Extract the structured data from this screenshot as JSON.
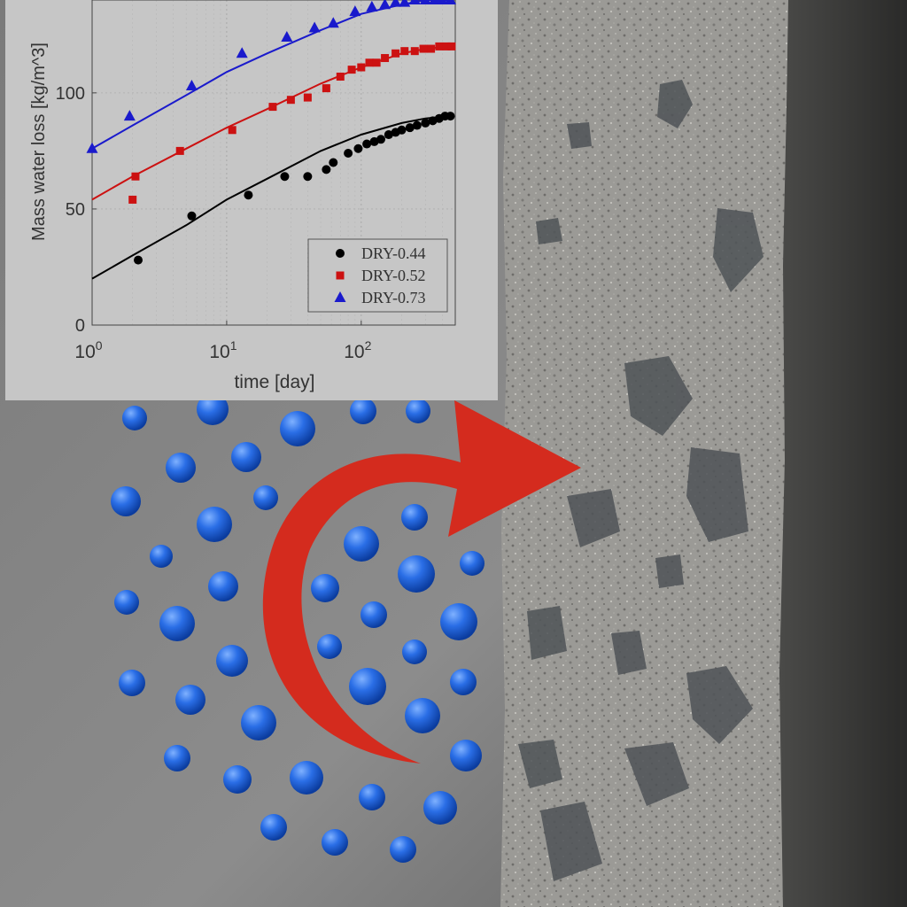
{
  "chart_data": {
    "type": "scatter",
    "xlabel": "time [day]",
    "ylabel": "Mass water loss [kg/m^3]",
    "x_scale": "log",
    "xlim": [
      1,
      500
    ],
    "ylim": [
      0,
      140
    ],
    "x_ticks": [
      {
        "value": 1,
        "base": "10",
        "exp": "0"
      },
      {
        "value": 10,
        "base": "10",
        "exp": "1"
      },
      {
        "value": 100,
        "base": "10",
        "exp": "2"
      }
    ],
    "y_ticks": [
      0,
      50,
      100
    ],
    "grid": true,
    "legend_position": "bottom-right",
    "series": [
      {
        "name": "DRY-0.44",
        "color": "#000000",
        "marker": "circle",
        "points": [
          [
            2.2,
            28
          ],
          [
            5.5,
            47
          ],
          [
            14.5,
            56
          ],
          [
            27,
            64
          ],
          [
            40,
            64
          ],
          [
            55,
            67
          ],
          [
            62,
            70
          ],
          [
            80,
            74
          ],
          [
            95,
            76
          ],
          [
            110,
            78
          ],
          [
            125,
            79
          ],
          [
            140,
            80
          ],
          [
            160,
            82
          ],
          [
            180,
            83
          ],
          [
            200,
            84
          ],
          [
            230,
            85
          ],
          [
            260,
            86
          ],
          [
            300,
            87
          ],
          [
            340,
            88
          ],
          [
            380,
            89
          ],
          [
            420,
            90
          ],
          [
            460,
            90
          ]
        ],
        "fit": [
          [
            1,
            20
          ],
          [
            2,
            30
          ],
          [
            5,
            43
          ],
          [
            10,
            54
          ],
          [
            20,
            63
          ],
          [
            50,
            75
          ],
          [
            100,
            82
          ],
          [
            200,
            87
          ],
          [
            300,
            89
          ],
          [
            450,
            90
          ]
        ]
      },
      {
        "name": "DRY-0.52",
        "color": "#cc1111",
        "marker": "square",
        "points": [
          [
            2,
            54
          ],
          [
            2.1,
            64
          ],
          [
            4.5,
            75
          ],
          [
            11,
            84
          ],
          [
            22,
            94
          ],
          [
            30,
            97
          ],
          [
            40,
            98
          ],
          [
            55,
            102
          ],
          [
            70,
            107
          ],
          [
            85,
            110
          ],
          [
            100,
            111
          ],
          [
            115,
            113
          ],
          [
            130,
            113
          ],
          [
            150,
            115
          ],
          [
            180,
            117
          ],
          [
            210,
            118
          ],
          [
            250,
            118
          ],
          [
            290,
            119
          ],
          [
            330,
            119
          ],
          [
            380,
            120
          ],
          [
            430,
            120
          ],
          [
            470,
            120
          ]
        ],
        "fit": [
          [
            1,
            54
          ],
          [
            2,
            64
          ],
          [
            5,
            76
          ],
          [
            10,
            85
          ],
          [
            20,
            93
          ],
          [
            50,
            104
          ],
          [
            100,
            111
          ],
          [
            200,
            117
          ],
          [
            300,
            119
          ],
          [
            450,
            120
          ]
        ]
      },
      {
        "name": "DRY-0.73",
        "color": "#1a1acc",
        "marker": "triangle",
        "points": [
          [
            1,
            76
          ],
          [
            1.9,
            90
          ],
          [
            5.5,
            103
          ],
          [
            13,
            117
          ],
          [
            28,
            124
          ],
          [
            45,
            128
          ],
          [
            62,
            130
          ],
          [
            90,
            135
          ],
          [
            120,
            137
          ],
          [
            150,
            138
          ],
          [
            180,
            139
          ],
          [
            210,
            139
          ],
          [
            250,
            140
          ],
          [
            300,
            140
          ],
          [
            350,
            140
          ],
          [
            400,
            140
          ],
          [
            460,
            140
          ]
        ],
        "fit": [
          [
            1,
            76
          ],
          [
            2,
            86
          ],
          [
            5,
            99
          ],
          [
            10,
            109
          ],
          [
            20,
            117
          ],
          [
            50,
            127
          ],
          [
            100,
            134
          ],
          [
            200,
            138
          ],
          [
            300,
            140
          ],
          [
            450,
            140
          ]
        ]
      }
    ]
  },
  "scene": {
    "arrow_color": "#d42b1e",
    "droplet_color": "#1e5fd6",
    "concrete_color": "#8f8f8c"
  }
}
